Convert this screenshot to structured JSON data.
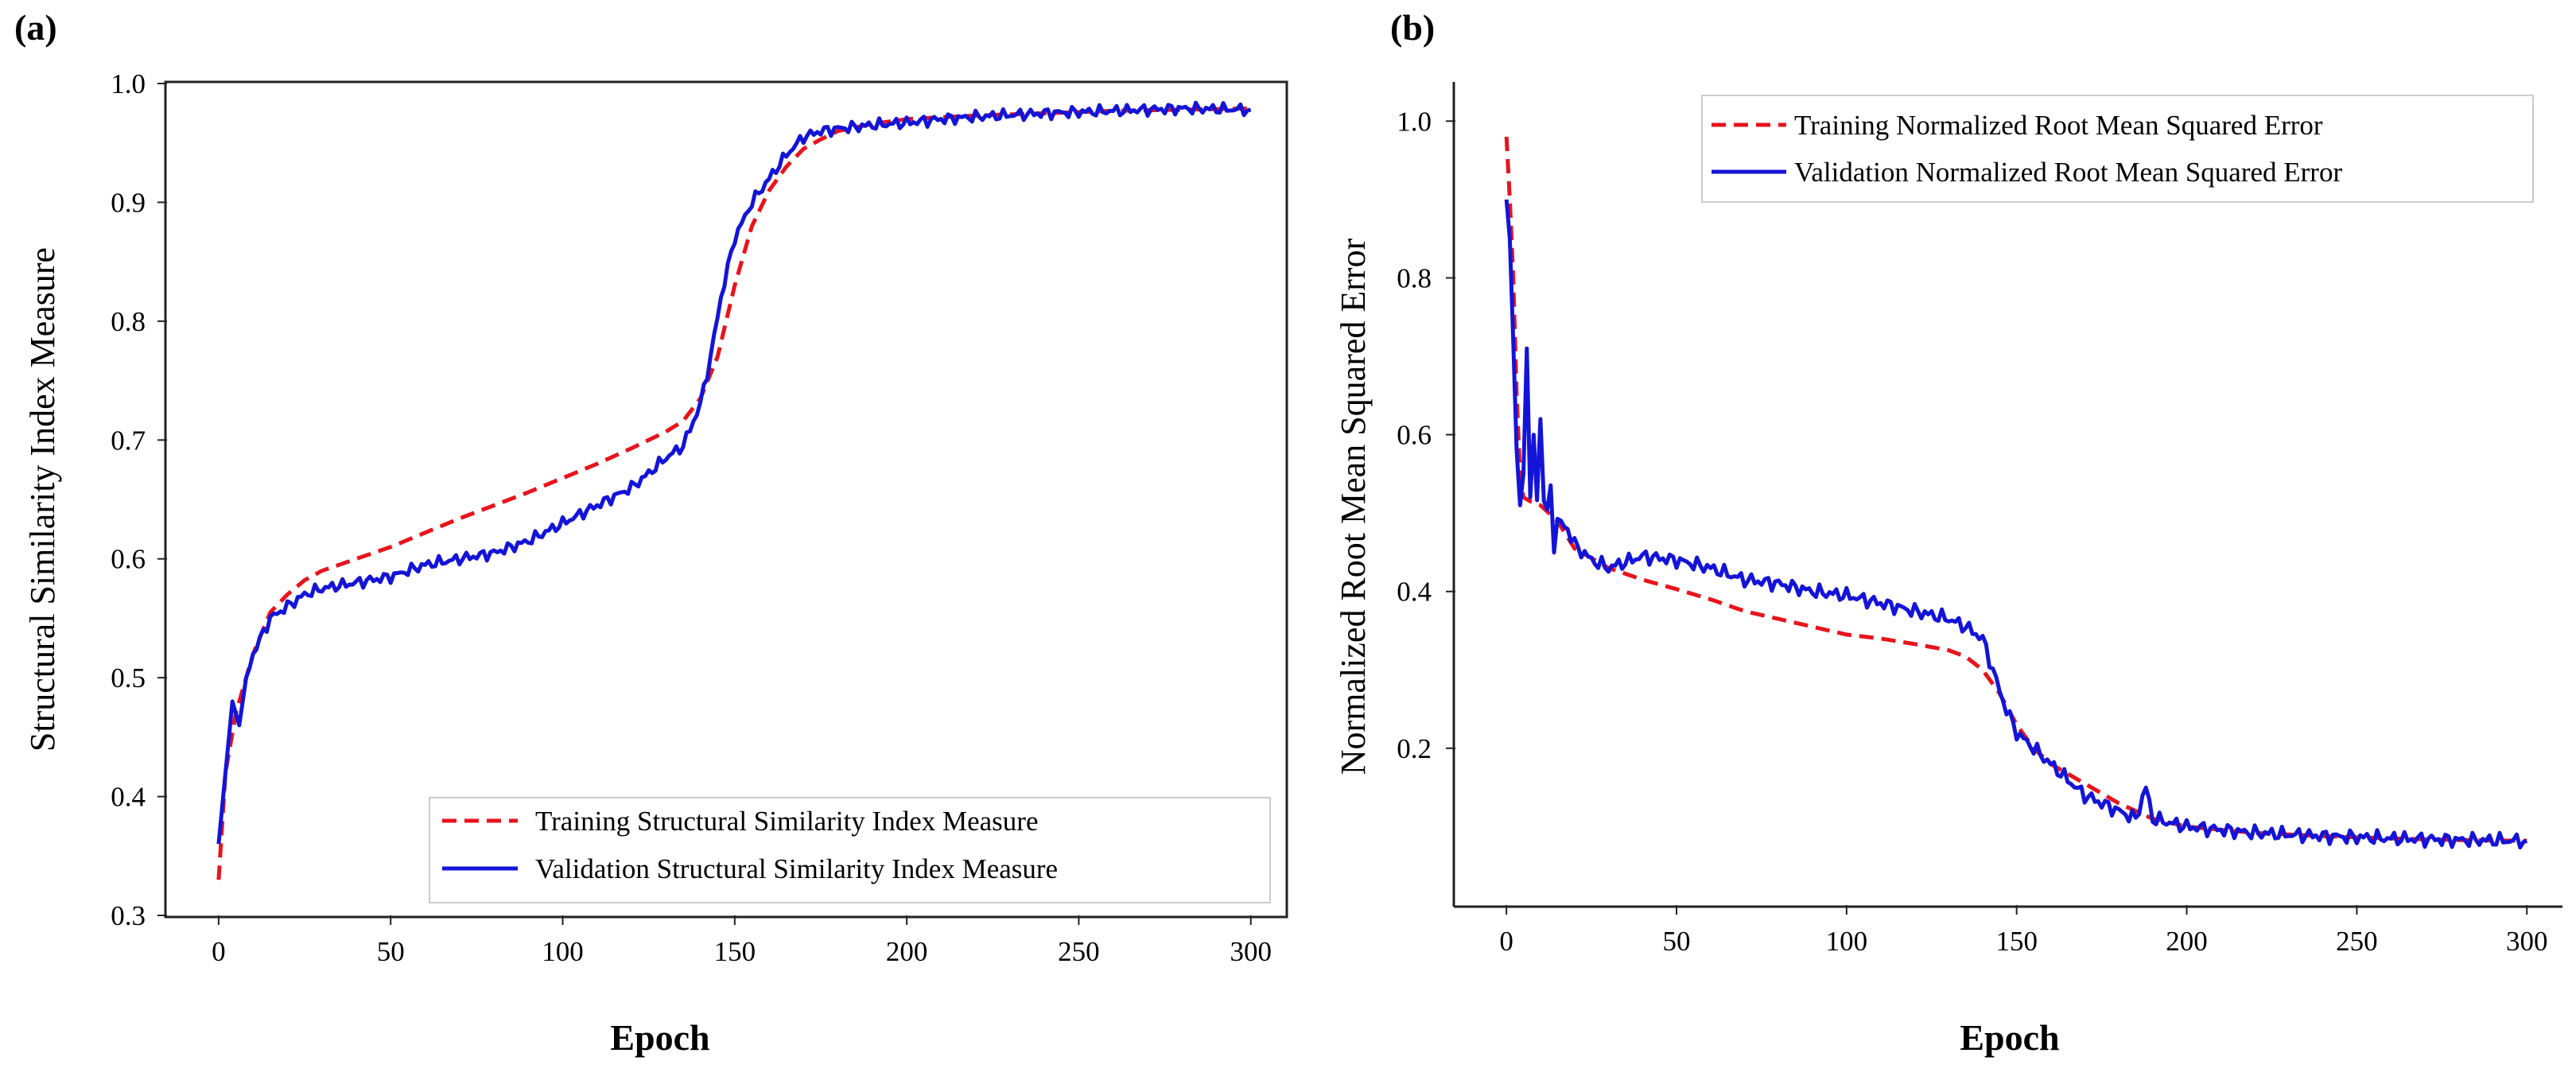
{
  "chart_data": [
    {
      "panel": "(a)",
      "type": "line",
      "title": "",
      "xlabel": "Epoch",
      "ylabel": "Structural Similarity Index Measure",
      "xlim": [
        -15,
        310
      ],
      "ylim": [
        0.3,
        1.0
      ],
      "xticks": [
        0,
        50,
        100,
        150,
        200,
        250,
        300
      ],
      "yticks": [
        0.3,
        0.4,
        0.5,
        0.6,
        0.7,
        0.8,
        0.9,
        1.0
      ],
      "xtick_labels": [
        "0",
        "50",
        "100",
        "150",
        "200",
        "250",
        "300"
      ],
      "ytick_labels": [
        "0.3",
        "0.4",
        "0.5",
        "0.6",
        "0.7",
        "0.8",
        "0.9",
        "1.0"
      ],
      "legend_position": "bottom-right",
      "series": [
        {
          "name": "Training Structural Similarity Index Measure",
          "color": "#e8141c",
          "style": "dashed",
          "x": [
            0,
            2,
            5,
            10,
            15,
            20,
            25,
            30,
            40,
            50,
            60,
            70,
            80,
            90,
            100,
            110,
            120,
            130,
            135,
            140,
            145,
            150,
            155,
            160,
            165,
            170,
            175,
            180,
            190,
            200,
            220,
            240,
            260,
            280,
            300
          ],
          "y": [
            0.33,
            0.42,
            0.47,
            0.52,
            0.555,
            0.57,
            0.582,
            0.59,
            0.6,
            0.61,
            0.622,
            0.634,
            0.645,
            0.656,
            0.668,
            0.68,
            0.693,
            0.707,
            0.716,
            0.735,
            0.77,
            0.83,
            0.88,
            0.91,
            0.93,
            0.945,
            0.953,
            0.96,
            0.966,
            0.97,
            0.973,
            0.975,
            0.977,
            0.978,
            0.979
          ]
        },
        {
          "name": "Validation Structural Similarity Index Measure",
          "color": "#1414d8",
          "style": "solid",
          "x": [
            0,
            2,
            4,
            6,
            8,
            10,
            15,
            20,
            25,
            30,
            40,
            50,
            60,
            70,
            80,
            90,
            100,
            110,
            120,
            125,
            130,
            135,
            140,
            143,
            146,
            150,
            155,
            160,
            165,
            170,
            175,
            180,
            190,
            200,
            210,
            220,
            240,
            260,
            280,
            300
          ],
          "y": [
            0.36,
            0.42,
            0.48,
            0.46,
            0.5,
            0.52,
            0.55,
            0.56,
            0.57,
            0.575,
            0.58,
            0.585,
            0.595,
            0.6,
            0.605,
            0.615,
            0.63,
            0.645,
            0.66,
            0.672,
            0.685,
            0.695,
            0.73,
            0.77,
            0.82,
            0.87,
            0.9,
            0.92,
            0.94,
            0.955,
            0.96,
            0.962,
            0.965,
            0.967,
            0.97,
            0.972,
            0.975,
            0.977,
            0.979,
            0.978
          ]
        }
      ]
    },
    {
      "panel": "(b)",
      "type": "line",
      "title": "",
      "xlabel": "Epoch",
      "ylabel": "Normalized Root Mean Squared Error",
      "xlim": [
        -15,
        310
      ],
      "ylim": [
        0.0,
        1.05
      ],
      "xticks": [
        0,
        50,
        100,
        150,
        200,
        250,
        300
      ],
      "yticks": [
        0.2,
        0.4,
        0.6,
        0.8,
        1.0
      ],
      "xtick_labels": [
        "0",
        "50",
        "100",
        "150",
        "200",
        "250",
        "300"
      ],
      "ytick_labels": [
        "0.2",
        "0.4",
        "0.6",
        "0.8",
        "1.0"
      ],
      "legend_position": "top-right",
      "series": [
        {
          "name": "Training Normalized Root Mean Squared Error",
          "color": "#e8141c",
          "style": "dashed",
          "x": [
            0,
            1,
            2,
            3,
            4,
            5,
            7,
            10,
            15,
            20,
            30,
            40,
            50,
            60,
            70,
            80,
            90,
            100,
            110,
            120,
            130,
            135,
            140,
            145,
            150,
            155,
            160,
            170,
            180,
            190,
            200,
            220,
            240,
            260,
            280,
            300
          ],
          "y": [
            0.98,
            0.9,
            0.8,
            0.65,
            0.55,
            0.52,
            0.515,
            0.51,
            0.49,
            0.455,
            0.43,
            0.415,
            0.403,
            0.39,
            0.375,
            0.365,
            0.355,
            0.345,
            0.34,
            0.333,
            0.325,
            0.317,
            0.3,
            0.27,
            0.23,
            0.2,
            0.18,
            0.155,
            0.13,
            0.11,
            0.1,
            0.092,
            0.088,
            0.085,
            0.083,
            0.082
          ]
        },
        {
          "name": "Validation Normalized Root Mean Squared Error",
          "color": "#1414d8",
          "style": "solid",
          "x": [
            0,
            1,
            2,
            3,
            4,
            5,
            6,
            7,
            8,
            9,
            10,
            11,
            12,
            13,
            14,
            15,
            18,
            20,
            25,
            30,
            40,
            50,
            60,
            70,
            80,
            90,
            100,
            110,
            120,
            130,
            135,
            140,
            143,
            146,
            150,
            155,
            160,
            165,
            170,
            175,
            180,
            185,
            188,
            190,
            195,
            200,
            220,
            240,
            260,
            280,
            300
          ],
          "y": [
            0.9,
            0.85,
            0.72,
            0.58,
            0.51,
            0.55,
            0.71,
            0.52,
            0.6,
            0.52,
            0.62,
            0.52,
            0.5,
            0.53,
            0.46,
            0.49,
            0.48,
            0.46,
            0.44,
            0.43,
            0.445,
            0.44,
            0.43,
            0.415,
            0.41,
            0.4,
            0.395,
            0.385,
            0.375,
            0.365,
            0.355,
            0.34,
            0.3,
            0.26,
            0.22,
            0.2,
            0.18,
            0.16,
            0.14,
            0.13,
            0.12,
            0.11,
            0.15,
            0.11,
            0.105,
            0.1,
            0.092,
            0.088,
            0.085,
            0.083,
            0.082
          ]
        }
      ]
    }
  ]
}
